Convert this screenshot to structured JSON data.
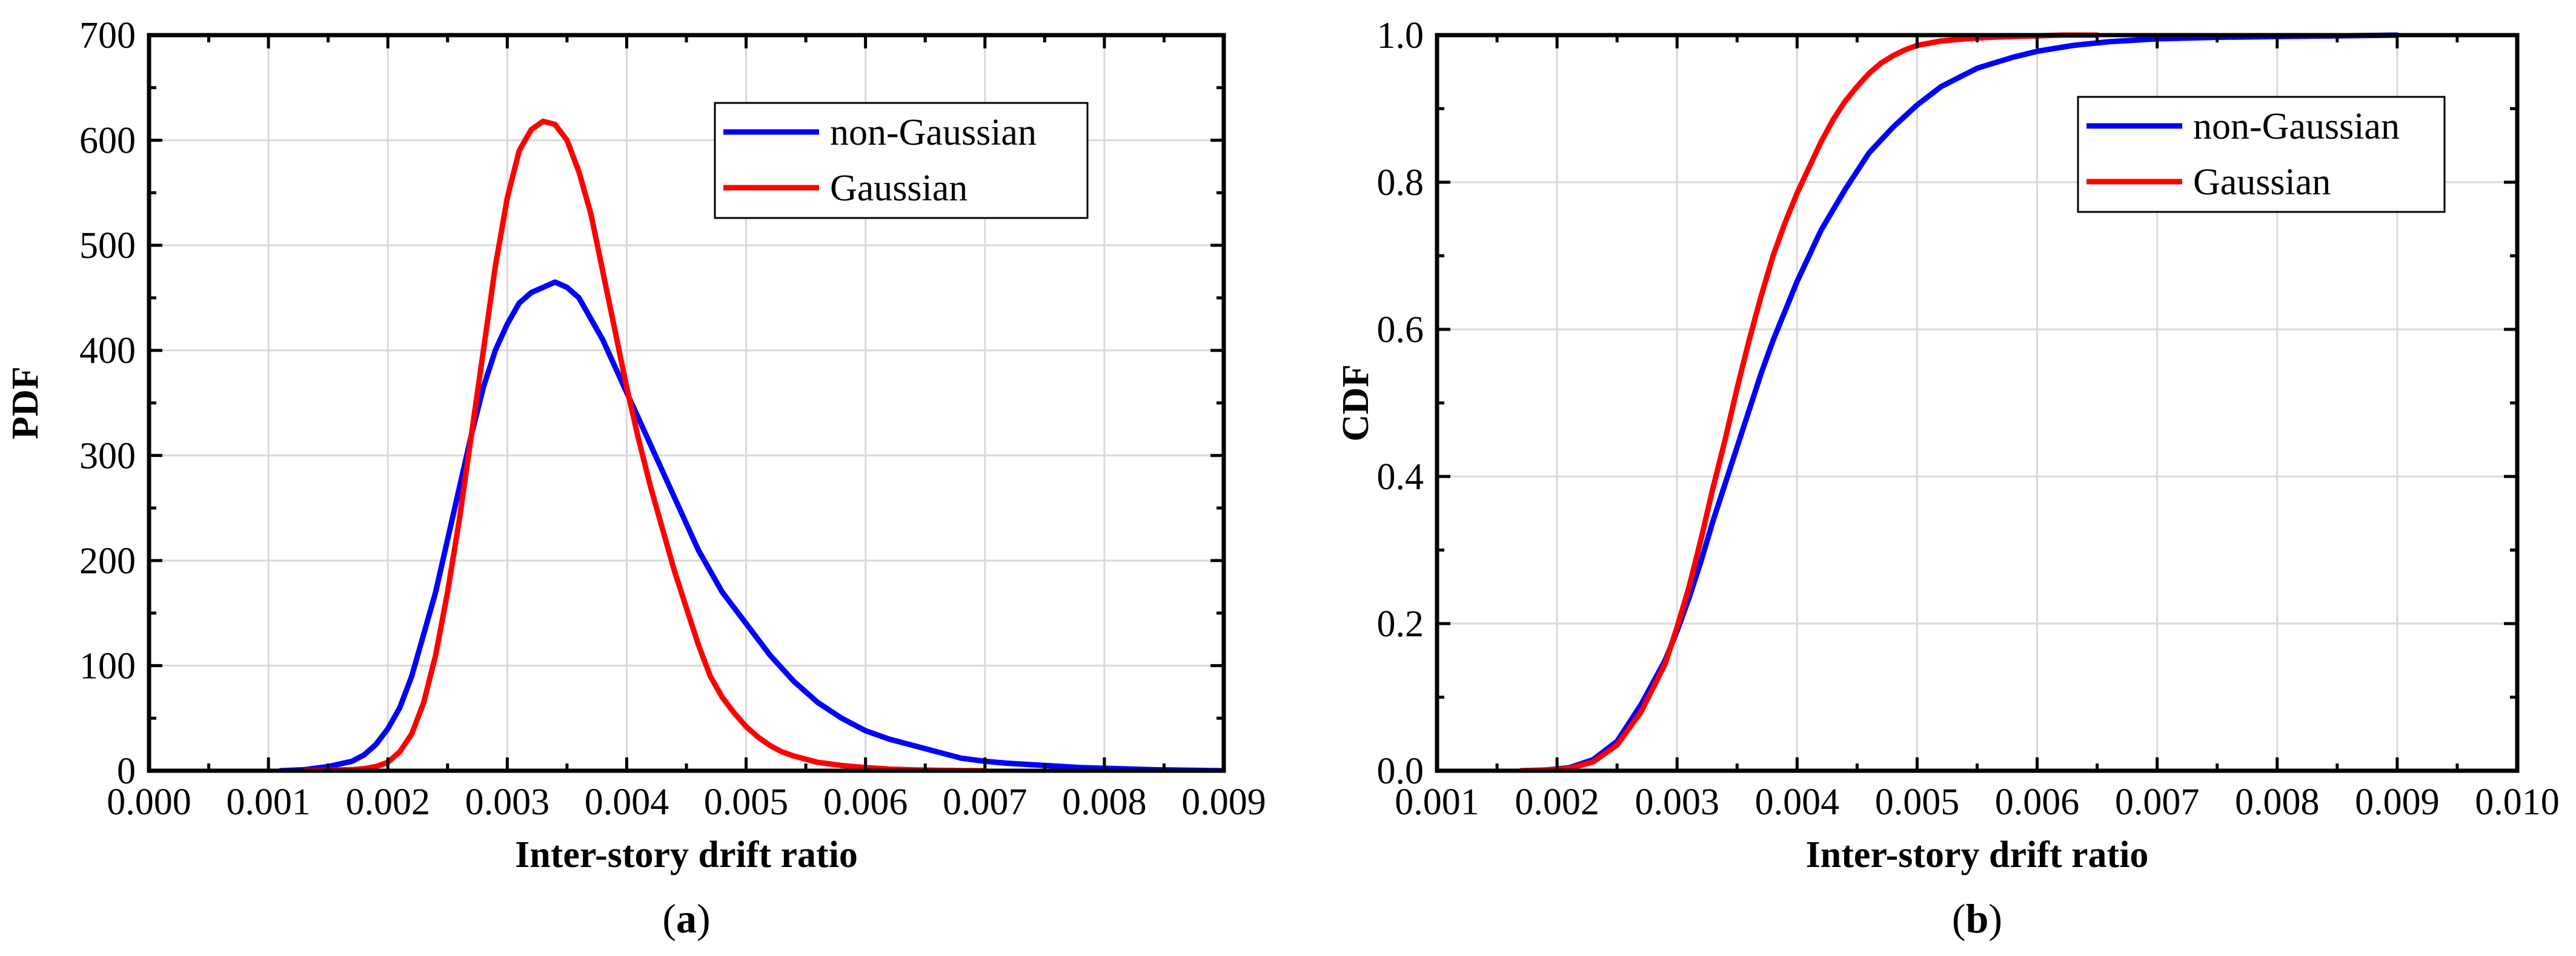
{
  "chart_data": [
    {
      "type": "line",
      "panel": "a",
      "caption": {
        "open": "(",
        "letter": "a",
        "close": ")"
      },
      "xlabel": "Inter-story drift ratio",
      "ylabel": "PDF",
      "xlim": [
        0.0,
        0.009
      ],
      "ylim": [
        0,
        700
      ],
      "xticks": [
        0.0,
        0.001,
        0.002,
        0.003,
        0.004,
        0.005,
        0.006,
        0.007,
        0.008,
        0.009
      ],
      "xtick_labels": [
        "0.000",
        "0.001",
        "0.002",
        "0.003",
        "0.004",
        "0.005",
        "0.006",
        "0.007",
        "0.008",
        "0.009"
      ],
      "yticks": [
        0,
        100,
        200,
        300,
        400,
        500,
        600,
        700
      ],
      "ytick_labels": [
        "0",
        "100",
        "200",
        "300",
        "400",
        "500",
        "600",
        "700"
      ],
      "grid": true,
      "legend_position": "top-right",
      "series": [
        {
          "name": "non-Gaussian",
          "color": "#0000ff",
          "x": [
            0.0011,
            0.0013,
            0.0015,
            0.0017,
            0.0018,
            0.0019,
            0.002,
            0.0021,
            0.0022,
            0.0023,
            0.0024,
            0.0025,
            0.0026,
            0.0027,
            0.0028,
            0.0029,
            0.003,
            0.0031,
            0.0032,
            0.0033,
            0.0034,
            0.0035,
            0.0036,
            0.0037,
            0.0038,
            0.0039,
            0.004,
            0.0041,
            0.0042,
            0.0044,
            0.0046,
            0.0048,
            0.005,
            0.0052,
            0.0054,
            0.0056,
            0.0058,
            0.006,
            0.0062,
            0.0064,
            0.0066,
            0.0068,
            0.007,
            0.0072,
            0.0075,
            0.0078,
            0.0081,
            0.0084,
            0.0087,
            0.009
          ],
          "y": [
            0,
            1,
            4,
            9,
            15,
            25,
            40,
            60,
            90,
            130,
            170,
            220,
            270,
            320,
            365,
            400,
            425,
            445,
            455,
            460,
            465,
            460,
            450,
            430,
            410,
            385,
            360,
            335,
            310,
            260,
            210,
            170,
            140,
            110,
            85,
            65,
            50,
            38,
            30,
            24,
            18,
            12,
            9,
            7,
            5,
            3,
            2,
            1,
            0.5,
            0
          ]
        },
        {
          "name": "Gaussian",
          "color": "#ff0000",
          "x": [
            0.0013,
            0.0015,
            0.0017,
            0.0018,
            0.0019,
            0.002,
            0.0021,
            0.0022,
            0.0023,
            0.0024,
            0.0025,
            0.0026,
            0.0027,
            0.0028,
            0.0029,
            0.003,
            0.0031,
            0.0032,
            0.0033,
            0.0034,
            0.0035,
            0.0036,
            0.0037,
            0.0038,
            0.0039,
            0.004,
            0.0041,
            0.0042,
            0.0043,
            0.0044,
            0.0045,
            0.0046,
            0.0047,
            0.0048,
            0.0049,
            0.005,
            0.0051,
            0.0052,
            0.0053,
            0.0054,
            0.0056,
            0.0058,
            0.006,
            0.0062,
            0.0064,
            0.0066,
            0.0068,
            0.007
          ],
          "y": [
            0,
            0.5,
            1,
            2,
            4,
            8,
            18,
            35,
            65,
            110,
            170,
            240,
            320,
            400,
            480,
            545,
            590,
            610,
            618,
            615,
            600,
            570,
            530,
            475,
            420,
            365,
            315,
            270,
            230,
            190,
            155,
            120,
            90,
            70,
            55,
            42,
            32,
            24,
            18,
            14,
            8,
            5,
            3,
            1.5,
            0.8,
            0.4,
            0.2,
            0
          ]
        }
      ]
    },
    {
      "type": "line",
      "panel": "b",
      "caption": {
        "open": "(",
        "letter": "b",
        "close": ")"
      },
      "xlabel": "Inter-story drift ratio",
      "ylabel": "CDF",
      "xlim": [
        0.001,
        0.01
      ],
      "ylim": [
        0.0,
        1.0
      ],
      "xticks": [
        0.001,
        0.002,
        0.003,
        0.004,
        0.005,
        0.006,
        0.007,
        0.008,
        0.009,
        0.01
      ],
      "xtick_labels": [
        "0.001",
        "0.002",
        "0.003",
        "0.004",
        "0.005",
        "0.006",
        "0.007",
        "0.008",
        "0.009",
        "0.010"
      ],
      "yticks": [
        0.0,
        0.2,
        0.4,
        0.6,
        0.8,
        1.0
      ],
      "ytick_labels": [
        "0.0",
        "0.2",
        "0.4",
        "0.6",
        "0.8",
        "1.0"
      ],
      "grid": true,
      "legend_position": "top-right",
      "series": [
        {
          "name": "non-Gaussian",
          "color": "#0000ff",
          "x": [
            0.0017,
            0.0019,
            0.0021,
            0.0023,
            0.0025,
            0.0027,
            0.0029,
            0.003,
            0.0031,
            0.0032,
            0.0033,
            0.0034,
            0.0035,
            0.0036,
            0.0037,
            0.0038,
            0.0039,
            0.004,
            0.0042,
            0.0044,
            0.0046,
            0.0048,
            0.005,
            0.0052,
            0.0055,
            0.0058,
            0.006,
            0.0063,
            0.0066,
            0.007,
            0.0075,
            0.008,
            0.0085,
            0.009
          ],
          "y": [
            0.0,
            0.001,
            0.004,
            0.015,
            0.04,
            0.09,
            0.15,
            0.19,
            0.235,
            0.285,
            0.34,
            0.39,
            0.44,
            0.49,
            0.54,
            0.585,
            0.625,
            0.665,
            0.735,
            0.79,
            0.84,
            0.875,
            0.905,
            0.93,
            0.955,
            0.97,
            0.978,
            0.986,
            0.991,
            0.995,
            0.997,
            0.998,
            0.999,
            1.0
          ]
        },
        {
          "name": "Gaussian",
          "color": "#ff0000",
          "x": [
            0.0017,
            0.0019,
            0.0021,
            0.0023,
            0.0025,
            0.0027,
            0.0029,
            0.003,
            0.0031,
            0.0032,
            0.0033,
            0.0034,
            0.0035,
            0.0036,
            0.0037,
            0.0038,
            0.0039,
            0.004,
            0.0041,
            0.0042,
            0.0043,
            0.0044,
            0.0045,
            0.0046,
            0.0047,
            0.0048,
            0.0049,
            0.005,
            0.0052,
            0.0054,
            0.0056,
            0.0058,
            0.006,
            0.0062,
            0.0065
          ],
          "y": [
            0.0,
            0.001,
            0.003,
            0.012,
            0.035,
            0.08,
            0.145,
            0.195,
            0.25,
            0.315,
            0.385,
            0.45,
            0.52,
            0.585,
            0.645,
            0.7,
            0.745,
            0.785,
            0.82,
            0.855,
            0.885,
            0.91,
            0.93,
            0.948,
            0.962,
            0.972,
            0.98,
            0.986,
            0.992,
            0.995,
            0.997,
            0.998,
            0.999,
            1.0,
            1.0
          ]
        }
      ]
    }
  ]
}
